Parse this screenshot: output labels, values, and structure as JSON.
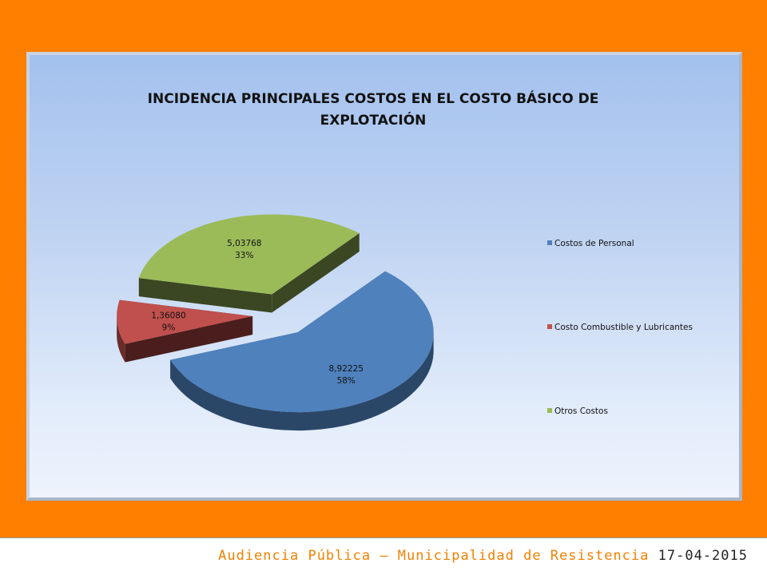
{
  "chart_data": {
    "type": "pie",
    "title": "INCIDENCIA PRINCIPALES COSTOS EN EL COSTO BÁSICO DE EXPLOTACIÓN",
    "three_d": true,
    "exploded": true,
    "legend_position": "right",
    "slices": [
      {
        "label": "Costos de Personal",
        "value_label": "8,92225",
        "percent_label": "58%",
        "value": 8.92225,
        "color": "#4f81bd"
      },
      {
        "label": "Costo Combustible y Lubricantes",
        "value_label": "1,36080",
        "percent_label": "9%",
        "value": 1.3608,
        "color": "#c0504d"
      },
      {
        "label": "Otros Costos",
        "value_label": "5,03768",
        "percent_label": "33%",
        "value": 5.03768,
        "color": "#9bbb59"
      }
    ]
  },
  "footer": {
    "text": "Audiencia Pública – Municipalidad de Resistencia",
    "date": "17-04-2015"
  }
}
